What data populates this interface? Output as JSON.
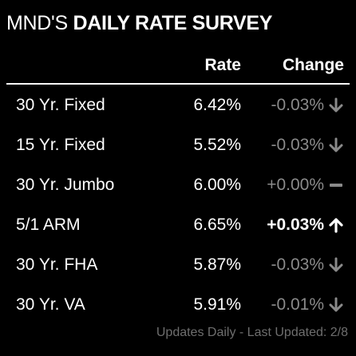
{
  "title": {
    "prefix": "MND'S",
    "main": "DAILY RATE SURVEY"
  },
  "columns": {
    "rate": "Rate",
    "change": "Change"
  },
  "rows": [
    {
      "name": "30 Yr. Fixed",
      "rate": "6.42%",
      "change": "-0.03%",
      "direction": "down"
    },
    {
      "name": "15 Yr. Fixed",
      "rate": "5.52%",
      "change": "-0.03%",
      "direction": "down"
    },
    {
      "name": "30 Yr. Jumbo",
      "rate": "6.00%",
      "change": "+0.00%",
      "direction": "flat"
    },
    {
      "name": "5/1 ARM",
      "rate": "6.65%",
      "change": "+0.03%",
      "direction": "up"
    },
    {
      "name": "30 Yr. FHA",
      "rate": "5.87%",
      "change": "-0.03%",
      "direction": "down"
    },
    {
      "name": "30 Yr. VA",
      "rate": "5.91%",
      "change": "-0.01%",
      "direction": "down"
    }
  ],
  "footer": "Updates Daily - Last Updated: 2/8",
  "colors": {
    "background": "#000000",
    "text": "#ffffff",
    "muted": "#8a8a8a",
    "footer": "#6e6e6e"
  }
}
